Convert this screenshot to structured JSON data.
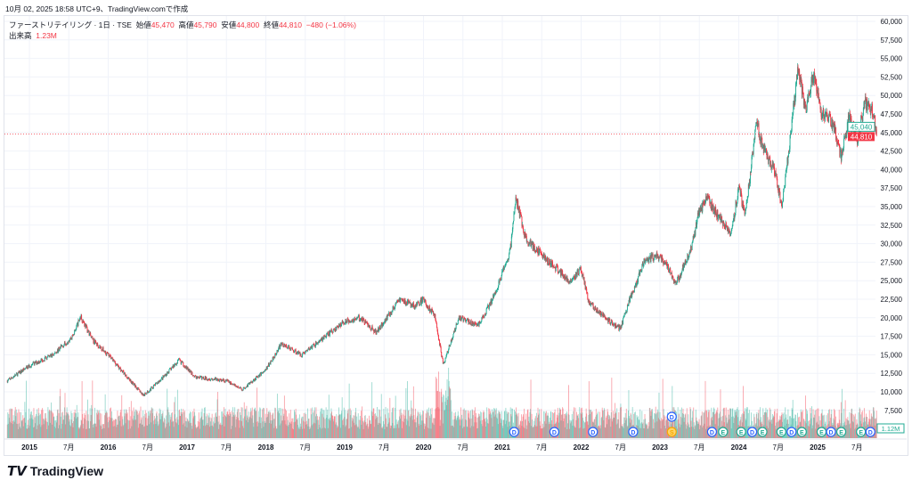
{
  "caption": "10月 02, 2025 18:58 UTC+9、TradingView.comで作成",
  "legend": {
    "symbol": "ファーストリテイリング · 1日 · TSE",
    "open_label": "始値",
    "open": "45,470",
    "high_label": "高値",
    "high": "45,790",
    "low_label": "安値",
    "low": "44,800",
    "close_label": "終値",
    "close": "44,810",
    "change": "−480 (−1.06%)",
    "volume_label": "出来高",
    "volume": "1.23M"
  },
  "logo": "TradingView",
  "colors": {
    "up": "#22ab94",
    "down": "#f23645",
    "grid": "#f0f3fa"
  },
  "chart_data": {
    "type": "candlestick",
    "ylim": [
      7500,
      60000
    ],
    "yticks": [
      "60,000",
      "57,500",
      "55,000",
      "52,500",
      "50,000",
      "47,500",
      "45,000",
      "42,500",
      "40,000",
      "37,500",
      "35,000",
      "32,500",
      "30,000",
      "27,500",
      "25,000",
      "22,500",
      "20,000",
      "17,500",
      "15,000",
      "12,500",
      "10,000",
      "7,500"
    ],
    "xticks": [
      {
        "label": "2015",
        "t": 2015
      },
      {
        "label": "7月",
        "t": 2015.5
      },
      {
        "label": "2016",
        "t": 2016
      },
      {
        "label": "7月",
        "t": 2016.5
      },
      {
        "label": "2017",
        "t": 2017
      },
      {
        "label": "7月",
        "t": 2017.5
      },
      {
        "label": "2018",
        "t": 2018
      },
      {
        "label": "7月",
        "t": 2018.5
      },
      {
        "label": "2019",
        "t": 2019
      },
      {
        "label": "7月",
        "t": 2019.5
      },
      {
        "label": "2020",
        "t": 2020
      },
      {
        "label": "7月",
        "t": 2020.5
      },
      {
        "label": "2021",
        "t": 2021
      },
      {
        "label": "7月",
        "t": 2021.5
      },
      {
        "label": "2022",
        "t": 2022
      },
      {
        "label": "7月",
        "t": 2022.5
      },
      {
        "label": "2023",
        "t": 2023
      },
      {
        "label": "7月",
        "t": 2023.5
      },
      {
        "label": "2024",
        "t": 2024
      },
      {
        "label": "7月",
        "t": 2024.5
      },
      {
        "label": "2025",
        "t": 2025
      },
      {
        "label": "7月",
        "t": 2025.5
      }
    ],
    "price_path": [
      [
        2014.72,
        11500
      ],
      [
        2015.0,
        13500
      ],
      [
        2015.3,
        15000
      ],
      [
        2015.55,
        17500
      ],
      [
        2015.65,
        20200
      ],
      [
        2015.8,
        17000
      ],
      [
        2016.0,
        15000
      ],
      [
        2016.2,
        12500
      ],
      [
        2016.45,
        9500
      ],
      [
        2016.7,
        12000
      ],
      [
        2016.9,
        14300
      ],
      [
        2017.1,
        12000
      ],
      [
        2017.5,
        11500
      ],
      [
        2017.7,
        10300
      ],
      [
        2018.0,
        13000
      ],
      [
        2018.2,
        16500
      ],
      [
        2018.45,
        15000
      ],
      [
        2018.7,
        17000
      ],
      [
        2019.0,
        19500
      ],
      [
        2019.2,
        20000
      ],
      [
        2019.4,
        18000
      ],
      [
        2019.7,
        22500
      ],
      [
        2019.9,
        21500
      ],
      [
        2020.0,
        22500
      ],
      [
        2020.15,
        20000
      ],
      [
        2020.25,
        13600
      ],
      [
        2020.45,
        20000
      ],
      [
        2020.7,
        19000
      ],
      [
        2020.9,
        23000
      ],
      [
        2021.1,
        29000
      ],
      [
        2021.17,
        36200
      ],
      [
        2021.3,
        30500
      ],
      [
        2021.6,
        27500
      ],
      [
        2021.85,
        25000
      ],
      [
        2022.0,
        26500
      ],
      [
        2022.1,
        22000
      ],
      [
        2022.3,
        20000
      ],
      [
        2022.5,
        18500
      ],
      [
        2022.6,
        22000
      ],
      [
        2022.8,
        27500
      ],
      [
        2022.95,
        28500
      ],
      [
        2023.1,
        27000
      ],
      [
        2023.2,
        24500
      ],
      [
        2023.4,
        29500
      ],
      [
        2023.5,
        34500
      ],
      [
        2023.6,
        36000
      ],
      [
        2023.75,
        33500
      ],
      [
        2023.9,
        31500
      ],
      [
        2024.0,
        37500
      ],
      [
        2024.08,
        34000
      ],
      [
        2024.15,
        39500
      ],
      [
        2024.22,
        47000
      ],
      [
        2024.3,
        43000
      ],
      [
        2024.45,
        40000
      ],
      [
        2024.55,
        35200
      ],
      [
        2024.65,
        44000
      ],
      [
        2024.75,
        53500
      ],
      [
        2024.85,
        48000
      ],
      [
        2024.95,
        53000
      ],
      [
        2025.05,
        47500
      ],
      [
        2025.2,
        46000
      ],
      [
        2025.3,
        41500
      ],
      [
        2025.4,
        47000
      ],
      [
        2025.5,
        44000
      ],
      [
        2025.6,
        49000
      ],
      [
        2025.7,
        48000
      ],
      [
        2025.75,
        44810
      ]
    ],
    "last_price_label": "44,810",
    "prev_label": "45,040",
    "volume_label": "1.12M",
    "events": [
      {
        "type": "D",
        "t": 2021.15
      },
      {
        "type": "D",
        "t": 2021.66
      },
      {
        "type": "D",
        "t": 2022.15
      },
      {
        "type": "D",
        "t": 2022.66
      },
      {
        "type": "S",
        "t": 2023.15
      },
      {
        "type": "D",
        "t": 2023.15,
        "row": 2
      },
      {
        "type": "D",
        "t": 2023.66
      },
      {
        "type": "E",
        "t": 2023.8
      },
      {
        "type": "E",
        "t": 2024.03
      },
      {
        "type": "D",
        "t": 2024.17
      },
      {
        "type": "E",
        "t": 2024.3
      },
      {
        "type": "E",
        "t": 2024.54
      },
      {
        "type": "D",
        "t": 2024.67
      },
      {
        "type": "E",
        "t": 2024.8
      },
      {
        "type": "E",
        "t": 2025.05
      },
      {
        "type": "D",
        "t": 2025.17
      },
      {
        "type": "E",
        "t": 2025.3
      },
      {
        "type": "E",
        "t": 2025.55
      },
      {
        "type": "D",
        "t": 2025.67
      }
    ]
  }
}
